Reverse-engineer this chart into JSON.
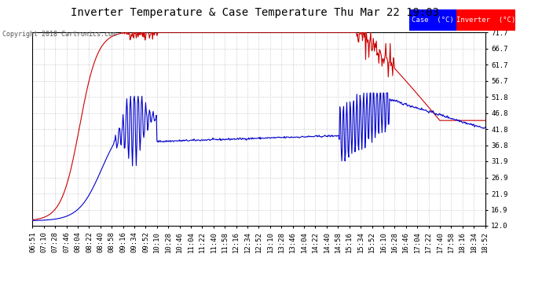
{
  "title": "Inverter Temperature & Case Temperature Thu Mar 22 19:03",
  "copyright": "Copyright 2018 Cartronics.com",
  "y_ticks": [
    12.0,
    16.9,
    21.9,
    26.9,
    31.9,
    36.8,
    41.8,
    46.8,
    51.8,
    56.7,
    61.7,
    66.7,
    71.7
  ],
  "ylim": [
    12.0,
    71.7
  ],
  "x_labels": [
    "06:51",
    "07:10",
    "07:28",
    "07:46",
    "08:04",
    "08:22",
    "08:40",
    "08:58",
    "09:16",
    "09:34",
    "09:52",
    "10:10",
    "10:28",
    "10:46",
    "11:04",
    "11:22",
    "11:40",
    "11:58",
    "12:16",
    "12:34",
    "12:52",
    "13:10",
    "13:28",
    "13:46",
    "14:04",
    "14:22",
    "14:40",
    "14:58",
    "15:16",
    "15:34",
    "15:52",
    "16:10",
    "16:28",
    "16:46",
    "17:04",
    "17:22",
    "17:40",
    "17:58",
    "18:16",
    "18:34",
    "18:52"
  ],
  "background_color": "#ffffff",
  "plot_bg_color": "#ffffff",
  "grid_color": "#bbbbbb",
  "case_color": "#0000cc",
  "inverter_color": "#cc0000",
  "legend_case_bg": "#0000ff",
  "legend_inv_bg": "#ff0000",
  "legend_text_color": "#ffffff",
  "title_fontsize": 10,
  "tick_fontsize": 6.5,
  "copyright_fontsize": 6
}
